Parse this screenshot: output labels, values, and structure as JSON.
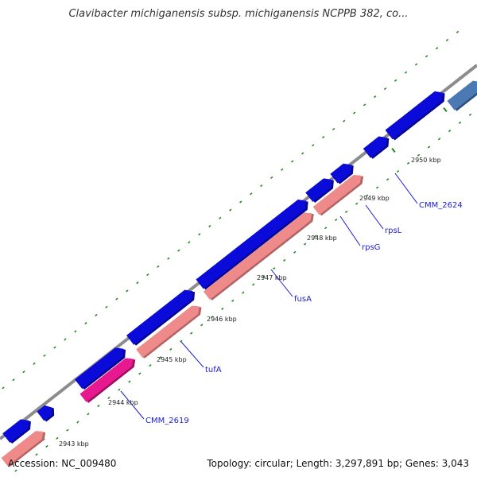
{
  "title": "Clavibacter michiganensis subsp. michiganensis NCPPB 382, co...",
  "footer": {
    "accession": "Accession: NC_009480",
    "stats": "Topology: circular; Length: 3,297,891 bp; Genes: 3,043"
  },
  "colors": {
    "backbone": "#8c8c8c",
    "cds_forward": "#0b0bd9",
    "cds_forward_dark": "#06068f",
    "gene_forward": "#ee8a8a",
    "gene_forward_dark": "#b06464",
    "pseudo": "#e8188e",
    "pseudo_dark": "#9b0f5f",
    "other": "#4a79b3",
    "tick": "#1e8a1e",
    "label": "#1a1ad6"
  },
  "scale_labels": [
    "2943 kbp",
    "2944 kbp",
    "2945 kbp",
    "2946 kbp",
    "2947 kbp",
    "2948 kbp",
    "2949 kbp",
    "2950 kbp"
  ],
  "gene_labels": [
    "CMM_2619",
    "tufA",
    "fusA",
    "rpsG",
    "rpsL",
    "CMM_2624"
  ]
}
